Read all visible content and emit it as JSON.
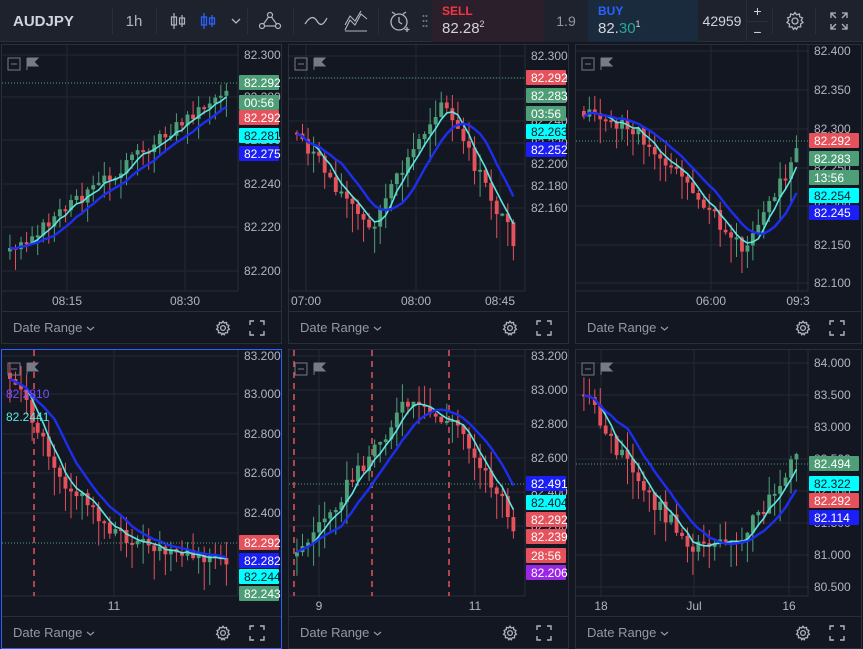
{
  "toolbar": {
    "symbol": "AUDJPY",
    "interval": "1h",
    "sell_label": "SELL",
    "sell_price_main": "82.28",
    "sell_price_sup": "2",
    "spread": "1.9",
    "buy_label": "BUY",
    "buy_price_prefix": "82.",
    "buy_price_highlight": "30",
    "buy_price_sup": "1",
    "quantity": "42959",
    "qty_plus": "+",
    "qty_minus": "−",
    "icons": [
      "bar-style-icon",
      "candle-style-icon",
      "chevron-down-icon",
      "indicators-icon",
      "line-tool-icon",
      "fib-tool-icon",
      "alert-clock-icon",
      "grip-icon",
      "settings-icon",
      "fullscreen-icon"
    ]
  },
  "colors": {
    "up": "#4e9f78",
    "down": "#e5525c",
    "ma_fast": "#5ce7e0",
    "ma_slow": "#1e2ef0",
    "purple": "#9b27e6",
    "grid": "#242833",
    "axis_text": "#b2b5be",
    "vline": "#e5525c"
  },
  "footer": {
    "date_range": "Date Range"
  },
  "panes": [
    {
      "id": "p1",
      "yticks": [
        "82.300",
        "82.280",
        "82.260",
        "82.240",
        "82.220",
        "82.200"
      ],
      "xticks": [
        "08:15",
        "08:30"
      ],
      "badges": [
        {
          "text": "82.292",
          "kind": "green"
        },
        {
          "text": "00:56",
          "kind": "green"
        },
        {
          "text": "82.292",
          "kind": "red"
        },
        {
          "text": "82.281",
          "kind": "cyan"
        },
        {
          "text": "82.275",
          "kind": "blue"
        }
      ]
    },
    {
      "id": "p2",
      "yticks": [
        "82.300",
        "82.280",
        "82.260",
        "82.240",
        "82.220",
        "82.200",
        "82.180",
        "82.160"
      ],
      "xticks": [
        "07:00",
        "08:00",
        "08:45"
      ],
      "badges": [
        {
          "text": "82.292",
          "kind": "red"
        },
        {
          "text": "82.283",
          "kind": "green"
        },
        {
          "text": "03:56",
          "kind": "green"
        },
        {
          "text": "82.263",
          "kind": "cyan"
        },
        {
          "text": "82.252",
          "kind": "blue"
        }
      ]
    },
    {
      "id": "p3",
      "yticks": [
        "82.400",
        "82.350",
        "82.300",
        "82.250",
        "82.200",
        "82.150",
        "82.100"
      ],
      "xticks": [
        "06:00",
        "09:3"
      ],
      "badges": [
        {
          "text": "82.292",
          "kind": "red"
        },
        {
          "text": "82.283",
          "kind": "green"
        },
        {
          "text": "13:56",
          "kind": "green"
        },
        {
          "text": "82.254",
          "kind": "cyan"
        },
        {
          "text": "82.245",
          "kind": "blue"
        }
      ]
    },
    {
      "id": "p4",
      "yticks": [
        "83.200",
        "83.000",
        "82.800",
        "82.600",
        "82.400"
      ],
      "xticks": [
        "11"
      ],
      "overlay": [
        "82.2810",
        "82.2441"
      ],
      "badges": [
        {
          "text": "82.292",
          "kind": "red"
        },
        {
          "text": "82.282",
          "kind": "blue"
        },
        {
          "text": "82.244",
          "kind": "cyan"
        },
        {
          "text": "82.243",
          "kind": "green"
        }
      ]
    },
    {
      "id": "p5",
      "yticks": [
        "83.200",
        "83.000",
        "82.800",
        "82.600",
        "82.400",
        "82.200"
      ],
      "xticks": [
        "9",
        "11"
      ],
      "badges": [
        {
          "text": "82.491",
          "kind": "blue"
        },
        {
          "text": "82.404",
          "kind": "cyan"
        },
        {
          "text": "82.292",
          "kind": "red"
        },
        {
          "text": "82.239",
          "kind": "red"
        },
        {
          "text": "28:56",
          "kind": "red"
        },
        {
          "text": "82.206",
          "kind": "purple"
        }
      ]
    },
    {
      "id": "p6",
      "yticks": [
        "84.000",
        "83.500",
        "83.000",
        "82.500",
        "82.000",
        "81.500",
        "81.000",
        "80.500"
      ],
      "xticks": [
        "18",
        "Jul",
        "16"
      ],
      "badges": [
        {
          "text": "82.494",
          "kind": "green"
        },
        {
          "text": "82.322",
          "kind": "cyan"
        },
        {
          "text": "82.292",
          "kind": "red"
        },
        {
          "text": "82.114",
          "kind": "blue"
        }
      ]
    }
  ]
}
